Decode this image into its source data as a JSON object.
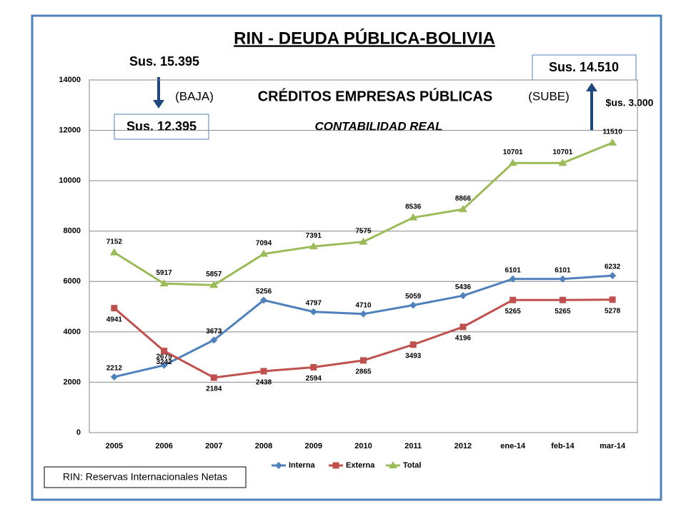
{
  "chart_data": {
    "type": "line",
    "title": "RIN - DEUDA PÚBLICA-BOLIVIA",
    "annotations": [
      "Sus. 15.395",
      "Sus. 12.395",
      "(BAJA)",
      "CRÉDITOS EMPRESAS PÚBLICAS",
      "(SUBE)",
      "CONTABILIDAD REAL",
      "Sus. 14.510",
      "$us. 3.000",
      "RIN: Reservas Internacionales Netas"
    ],
    "categories": [
      "2005",
      "2006",
      "2007",
      "2008",
      "2009",
      "2010",
      "2011",
      "2012",
      "ene-14",
      "feb-14",
      "mar-14"
    ],
    "series": [
      {
        "name": "Interna",
        "color": "#4f81bd",
        "marker": "diamond",
        "values": [
          2212,
          2675,
          3673,
          5256,
          4797,
          4710,
          5059,
          5436,
          6101,
          6101,
          6232
        ]
      },
      {
        "name": "Externa",
        "color": "#c0504d",
        "marker": "square",
        "values": [
          4941,
          3242,
          2184,
          2438,
          2594,
          2865,
          3493,
          4196,
          5265,
          5265,
          5278
        ]
      },
      {
        "name": "Total",
        "color": "#9bbb59",
        "marker": "triangle",
        "values": [
          7152,
          5917,
          5857,
          7094,
          7391,
          7575,
          8536,
          8866,
          10701,
          10701,
          11510
        ]
      }
    ],
    "ylim": [
      0,
      14000
    ],
    "yticks": [
      0,
      2000,
      4000,
      6000,
      8000,
      10000,
      12000,
      14000
    ],
    "grid": true,
    "legend": "bottom"
  }
}
